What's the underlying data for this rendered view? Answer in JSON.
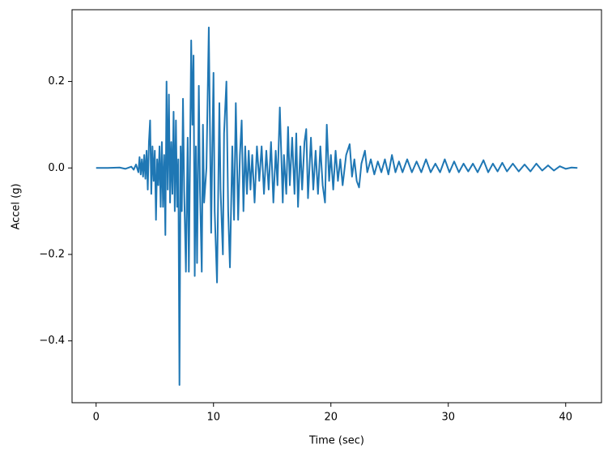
{
  "chart_data": {
    "type": "line",
    "x_label": "Time (sec)",
    "y_label": "Accel (g)",
    "color": "#1f77b4",
    "x": [
      0,
      1,
      2,
      2.5,
      3,
      3.2,
      3.4,
      3.6,
      3.7,
      3.8,
      3.9,
      4.0,
      4.1,
      4.2,
      4.3,
      4.4,
      4.5,
      4.6,
      4.7,
      4.8,
      4.9,
      5.0,
      5.1,
      5.2,
      5.3,
      5.4,
      5.5,
      5.6,
      5.7,
      5.8,
      5.9,
      6.0,
      6.1,
      6.2,
      6.3,
      6.4,
      6.5,
      6.6,
      6.7,
      6.8,
      6.9,
      7.0,
      7.1,
      7.2,
      7.3,
      7.4,
      7.5,
      7.65,
      7.8,
      7.9,
      8.1,
      8.2,
      8.3,
      8.4,
      8.5,
      8.6,
      8.75,
      8.85,
      9.0,
      9.1,
      9.2,
      9.4,
      9.6,
      9.8,
      9.9,
      10.0,
      10.1,
      10.3,
      10.5,
      10.6,
      10.8,
      10.9,
      11.1,
      11.25,
      11.4,
      11.6,
      11.75,
      11.9,
      12.1,
      12.25,
      12.4,
      12.55,
      12.7,
      12.85,
      13.0,
      13.15,
      13.3,
      13.5,
      13.7,
      13.9,
      14.1,
      14.3,
      14.5,
      14.7,
      14.9,
      15.1,
      15.3,
      15.45,
      15.65,
      15.9,
      16.0,
      16.2,
      16.35,
      16.5,
      16.7,
      16.9,
      17.05,
      17.2,
      17.4,
      17.55,
      17.75,
      17.9,
      18.05,
      18.3,
      18.5,
      18.7,
      18.9,
      19.1,
      19.3,
      19.5,
      19.65,
      19.85,
      20.0,
      20.2,
      20.4,
      20.6,
      20.8,
      21.0,
      21.3,
      21.6,
      21.8,
      22.0,
      22.2,
      22.4,
      22.6,
      22.9,
      23.1,
      23.4,
      23.7,
      24.0,
      24.3,
      24.6,
      24.9,
      25.2,
      25.5,
      25.8,
      26.1,
      26.5,
      26.9,
      27.3,
      27.7,
      28.1,
      28.5,
      28.9,
      29.3,
      29.7,
      30.1,
      30.5,
      30.9,
      31.3,
      31.7,
      32.1,
      32.5,
      33.0,
      33.4,
      33.8,
      34.2,
      34.6,
      35.0,
      35.5,
      36.0,
      36.5,
      37.0,
      37.5,
      38.0,
      38.5,
      39.0,
      39.5,
      40.0,
      40.5,
      41.0
    ],
    "values": [
      0,
      0,
      0.001,
      -0.002,
      0.003,
      -0.004,
      0.008,
      -0.01,
      0.025,
      -0.015,
      0.02,
      -0.02,
      0.03,
      -0.025,
      0.04,
      -0.05,
      0.06,
      0.11,
      -0.06,
      0.05,
      -0.03,
      0.04,
      -0.12,
      0.02,
      -0.04,
      0.05,
      -0.09,
      0.06,
      -0.09,
      0.03,
      -0.155,
      0.2,
      -0.05,
      0.17,
      -0.08,
      0.06,
      -0.06,
      0.13,
      -0.1,
      0.11,
      -0.09,
      0.02,
      -0.502,
      0.05,
      -0.1,
      0.16,
      -0.05,
      -0.24,
      0.07,
      -0.24,
      0.295,
      0.1,
      0.26,
      -0.25,
      0.05,
      -0.22,
      0.19,
      -0.05,
      -0.24,
      0.1,
      -0.08,
      0.0,
      0.325,
      -0.15,
      0.05,
      0.22,
      -0.1,
      -0.265,
      0.15,
      -0.05,
      -0.2,
      0.08,
      0.2,
      -0.1,
      -0.23,
      0.05,
      -0.12,
      0.15,
      -0.12,
      0.03,
      0.11,
      -0.1,
      0.05,
      -0.06,
      0.04,
      -0.05,
      0.03,
      -0.08,
      0.05,
      -0.03,
      0.05,
      -0.06,
      0.04,
      -0.05,
      0.06,
      -0.08,
      0.04,
      -0.04,
      0.14,
      -0.08,
      0.03,
      -0.06,
      0.095,
      -0.04,
      0.07,
      -0.06,
      0.08,
      -0.09,
      0.05,
      -0.05,
      0.06,
      0.09,
      -0.07,
      0.07,
      -0.05,
      0.04,
      -0.06,
      0.05,
      -0.04,
      -0.08,
      0.1,
      -0.03,
      0.03,
      -0.05,
      0.04,
      -0.03,
      0.02,
      -0.04,
      0.03,
      0.055,
      -0.02,
      0.02,
      -0.03,
      -0.045,
      0.01,
      0.04,
      -0.01,
      0.02,
      -0.015,
      0.015,
      -0.01,
      0.02,
      -0.015,
      0.03,
      -0.01,
      0.015,
      -0.01,
      0.02,
      -0.01,
      0.015,
      -0.01,
      0.02,
      -0.01,
      0.01,
      -0.01,
      0.02,
      -0.01,
      0.015,
      -0.01,
      0.01,
      -0.008,
      0.01,
      -0.01,
      0.018,
      -0.01,
      0.01,
      -0.008,
      0.012,
      -0.008,
      0.01,
      -0.008,
      0.008,
      -0.008,
      0.01,
      -0.006,
      0.006,
      -0.006,
      0.004,
      -0.002,
      0.001,
      0
    ],
    "xlim": [
      -2.05,
      43.05
    ],
    "ylim": [
      -0.543,
      0.366
    ],
    "xticks": [
      0,
      10,
      20,
      30,
      40
    ],
    "yticks": [
      {
        "value": -0.4,
        "label": "−0.4"
      },
      {
        "value": -0.2,
        "label": "−0.2"
      },
      {
        "value": 0,
        "label": "0.0"
      },
      0.2
    ]
  }
}
